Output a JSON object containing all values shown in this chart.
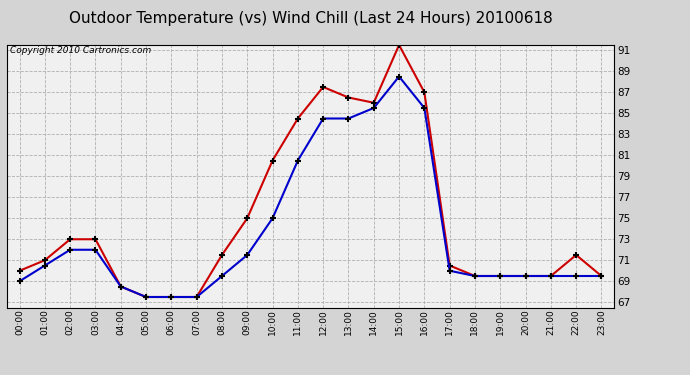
{
  "title": "Outdoor Temperature (vs) Wind Chill (Last 24 Hours) 20100618",
  "copyright": "Copyright 2010 Cartronics.com",
  "x_labels": [
    "00:00",
    "01:00",
    "02:00",
    "03:00",
    "04:00",
    "05:00",
    "06:00",
    "07:00",
    "08:00",
    "09:00",
    "10:00",
    "11:00",
    "12:00",
    "13:00",
    "14:00",
    "15:00",
    "16:00",
    "17:00",
    "18:00",
    "19:00",
    "20:00",
    "21:00",
    "22:00",
    "23:00"
  ],
  "red_temp": [
    70.0,
    71.0,
    73.0,
    73.0,
    68.5,
    67.5,
    67.5,
    67.5,
    71.5,
    75.0,
    80.5,
    84.5,
    87.5,
    86.5,
    86.0,
    91.5,
    87.0,
    70.5,
    69.5,
    69.5,
    69.5,
    69.5,
    71.5,
    69.5
  ],
  "blue_wc": [
    69.0,
    70.5,
    72.0,
    72.0,
    68.5,
    67.5,
    67.5,
    67.5,
    69.5,
    71.5,
    75.0,
    80.5,
    84.5,
    84.5,
    85.5,
    88.5,
    85.5,
    70.0,
    69.5,
    69.5,
    69.5,
    69.5,
    69.5,
    69.5
  ],
  "ylim_min": 67.0,
  "ylim_max": 91.0,
  "yticks": [
    67.0,
    69.0,
    71.0,
    73.0,
    75.0,
    77.0,
    79.0,
    81.0,
    83.0,
    85.0,
    87.0,
    89.0,
    91.0
  ],
  "red_color": "#cc0000",
  "blue_color": "#0000cc",
  "bg_color": "#d4d4d4",
  "plot_bg": "#f0f0f0",
  "grid_color": "#b0b0b0",
  "title_fontsize": 11,
  "copyright_fontsize": 6.5
}
